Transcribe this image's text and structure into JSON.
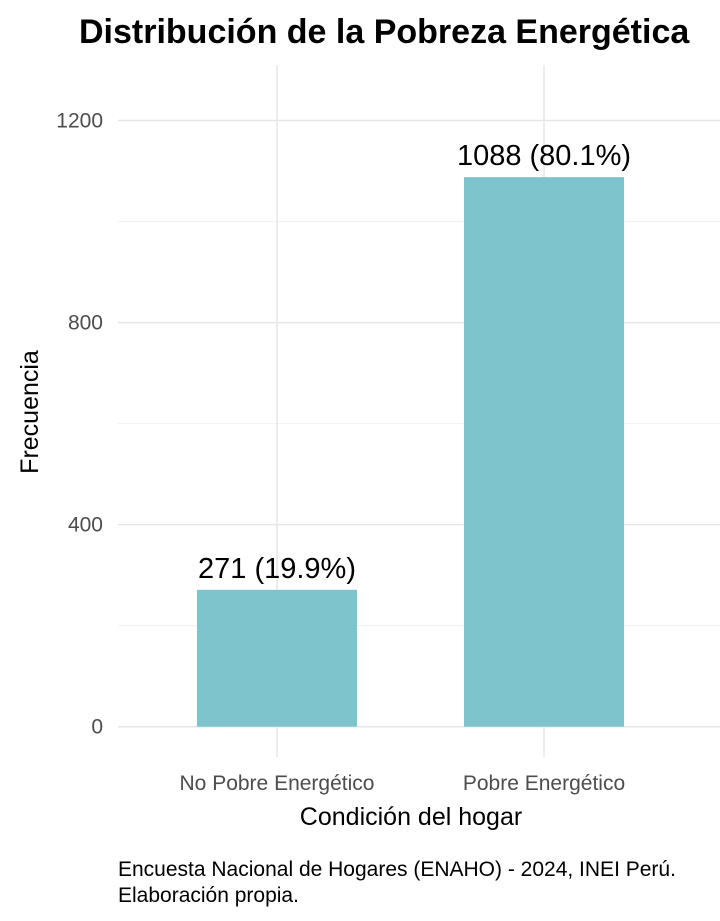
{
  "chart_data": {
    "type": "bar",
    "title": "Distribución de la Pobreza Energética",
    "xlabel": "Condición del hogar",
    "ylabel": "Frecuencia",
    "categories": [
      "No Pobre Energético",
      "Pobre Energético"
    ],
    "values": [
      271,
      1088
    ],
    "data_labels": [
      "271 (19.9%)",
      "1088 (80.1%)"
    ],
    "yticks": [
      0,
      400,
      800,
      1200
    ],
    "ytick_labels": [
      "0",
      "400",
      "800",
      "1200"
    ],
    "ylim": [
      -60,
      1310
    ],
    "grid": true,
    "bar_color": "#7DC4CD",
    "caption_lines": [
      "Encuesta Nacional de Hogares (ENAHO) - 2024, INEI Perú.",
      "Elaboración propia."
    ]
  }
}
